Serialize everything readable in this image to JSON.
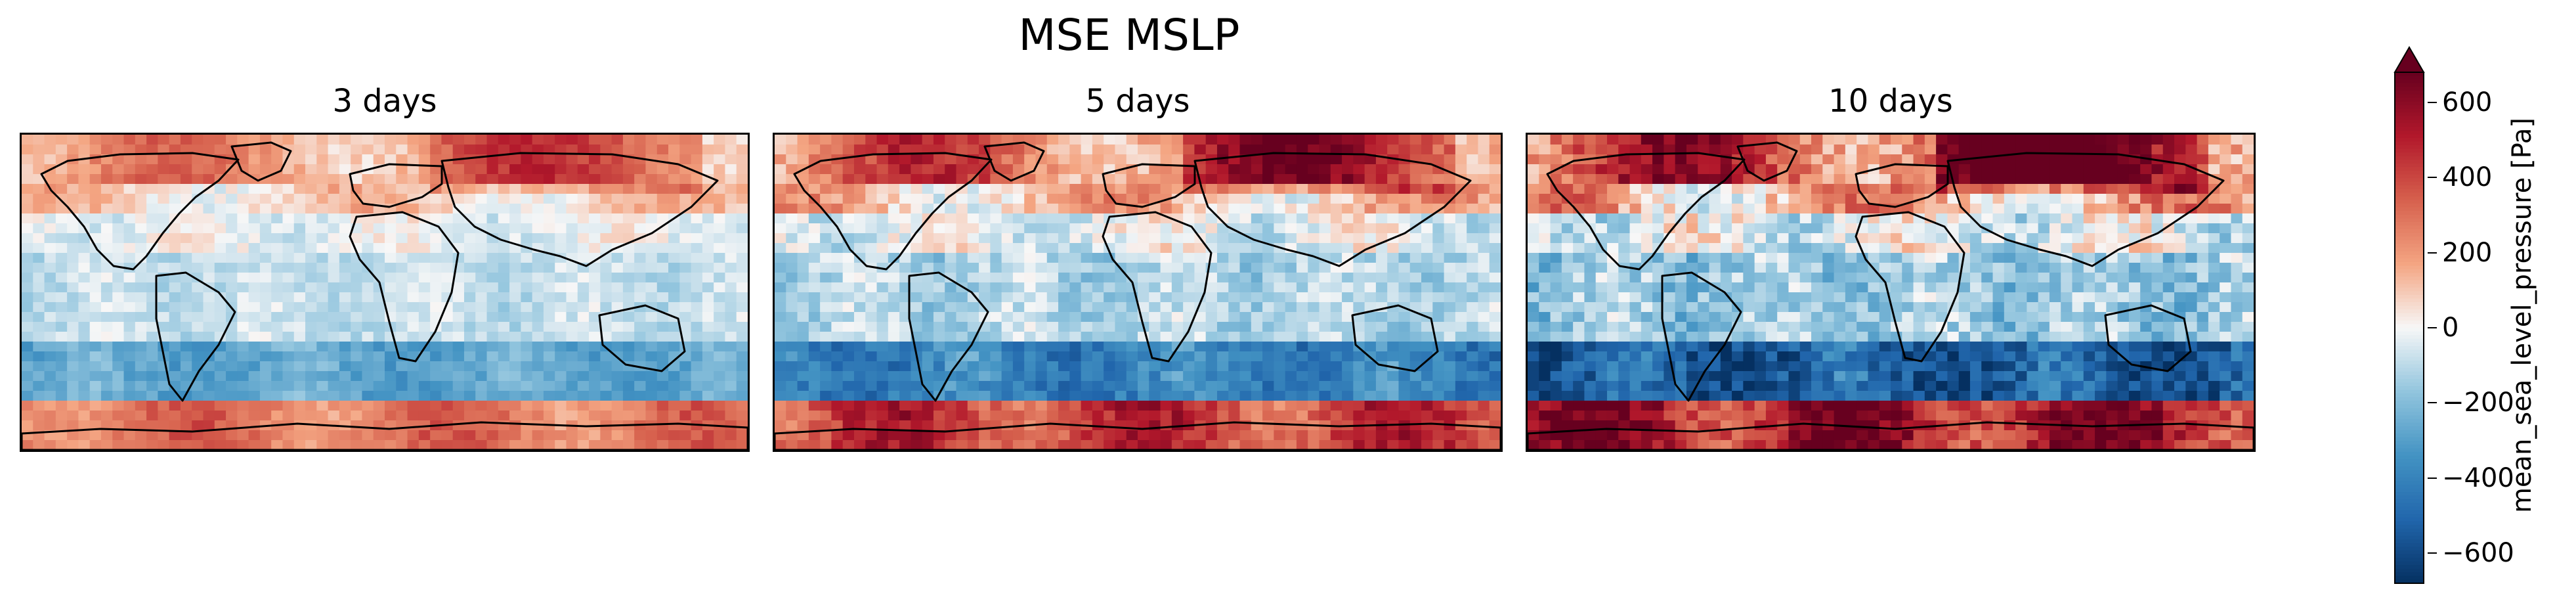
{
  "figure": {
    "suptitle": "MSE MSLP"
  },
  "panels": [
    {
      "title": "3 days",
      "lead_days": 3,
      "intensity": 0.55
    },
    {
      "title": "5 days",
      "lead_days": 5,
      "intensity": 0.8
    },
    {
      "title": "10 days",
      "lead_days": 10,
      "intensity": 1.05
    }
  ],
  "colorbar": {
    "label": "mean_sea_level_pressure [Pa]",
    "colormap": "RdBu_r",
    "vmin": -680,
    "vmax": 680,
    "extend": "max",
    "ticks": [
      {
        "value": 600,
        "label": "600"
      },
      {
        "value": 400,
        "label": "400"
      },
      {
        "value": 200,
        "label": "200"
      },
      {
        "value": 0,
        "label": "0"
      },
      {
        "value": -200,
        "label": "−200"
      },
      {
        "value": -400,
        "label": "−400"
      },
      {
        "value": -600,
        "label": "−600"
      }
    ],
    "colors": {
      "neg_max": "#053061",
      "neg_mid": "#4393c3",
      "zero": "#f7f7f7",
      "pos_mid": "#f4a582",
      "pos_max": "#67001f"
    }
  }
}
